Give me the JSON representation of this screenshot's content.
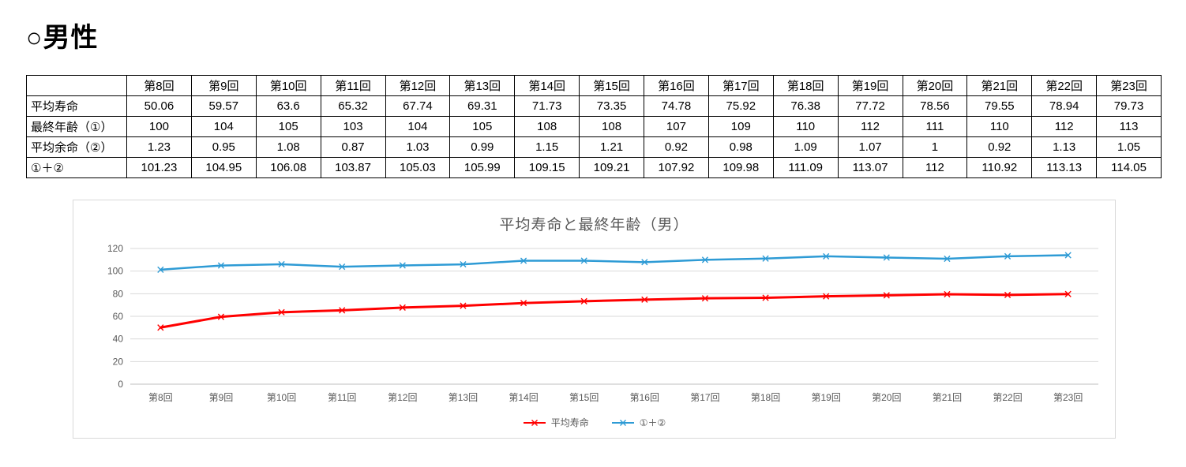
{
  "page_title": "○男性",
  "table": {
    "columns": [
      "第8回",
      "第9回",
      "第10回",
      "第11回",
      "第12回",
      "第13回",
      "第14回",
      "第15回",
      "第16回",
      "第17回",
      "第18回",
      "第19回",
      "第20回",
      "第21回",
      "第22回",
      "第23回"
    ],
    "rows": [
      {
        "label": "平均寿命",
        "values": [
          "50.06",
          "59.57",
          "63.6",
          "65.32",
          "67.74",
          "69.31",
          "71.73",
          "73.35",
          "74.78",
          "75.92",
          "76.38",
          "77.72",
          "78.56",
          "79.55",
          "78.94",
          "79.73"
        ]
      },
      {
        "label": "最終年齢（①）",
        "values": [
          "100",
          "104",
          "105",
          "103",
          "104",
          "105",
          "108",
          "108",
          "107",
          "109",
          "110",
          "112",
          "111",
          "110",
          "112",
          "113"
        ]
      },
      {
        "label": "平均余命（②）",
        "values": [
          "1.23",
          "0.95",
          "1.08",
          "0.87",
          "1.03",
          "0.99",
          "1.15",
          "1.21",
          "0.92",
          "0.98",
          "1.09",
          "1.07",
          "1",
          "0.92",
          "1.13",
          "1.05"
        ]
      },
      {
        "label": "①＋②",
        "values": [
          "101.23",
          "104.95",
          "106.08",
          "103.87",
          "105.03",
          "105.99",
          "109.15",
          "109.21",
          "107.92",
          "109.98",
          "111.09",
          "113.07",
          "112",
          "110.92",
          "113.13",
          "114.05"
        ]
      }
    ]
  },
  "chart_data": {
    "type": "line",
    "title": "平均寿命と最終年齢（男）",
    "categories": [
      "第8回",
      "第9回",
      "第10回",
      "第11回",
      "第12回",
      "第13回",
      "第14回",
      "第15回",
      "第16回",
      "第17回",
      "第18回",
      "第19回",
      "第20回",
      "第21回",
      "第22回",
      "第23回"
    ],
    "series": [
      {
        "name": "平均寿命",
        "color": "#ff0000",
        "values": [
          50.06,
          59.57,
          63.6,
          65.32,
          67.74,
          69.31,
          71.73,
          73.35,
          74.78,
          75.92,
          76.38,
          77.72,
          78.56,
          79.55,
          78.94,
          79.73
        ]
      },
      {
        "name": "①＋②",
        "color": "#2e9bd5",
        "values": [
          101.23,
          104.95,
          106.08,
          103.87,
          105.03,
          105.99,
          109.15,
          109.21,
          107.92,
          109.98,
          111.09,
          113.07,
          112,
          110.92,
          113.13,
          114.05
        ]
      }
    ],
    "ylim": [
      0,
      120
    ],
    "yticks": [
      0,
      20,
      40,
      60,
      80,
      100,
      120
    ],
    "xlabel": "",
    "ylabel": "",
    "grid": true,
    "legend_position": "bottom",
    "marker": "x",
    "grid_color": "#d9d9d9",
    "axis_text_color": "#595959"
  }
}
